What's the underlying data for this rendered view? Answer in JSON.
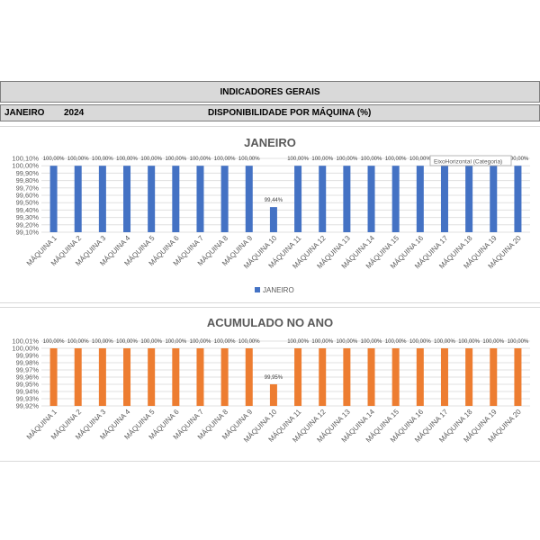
{
  "header": {
    "title": "INDICADORES GERAIS",
    "month": "JANEIRO",
    "year": "2024",
    "subtitle": "DISPONIBILIDADE POR MÁQUINA (%)"
  },
  "tooltip": "EixoHorizontal (Categoria)",
  "chart_data": [
    {
      "type": "bar",
      "title": "JANEIRO",
      "categories": [
        "MÁQUINA 1",
        "MÁQUINA 2",
        "MÁQUINA 3",
        "MÁQUINA 4",
        "MÁQUINA 5",
        "MÁQUINA 6",
        "MÁQUINA 7",
        "MÁQUINA 8",
        "MÁQUINA 9",
        "MÁQUINA 10",
        "MÁQUINA 11",
        "MÁQUINA 12",
        "MÁQUINA 13",
        "MÁQUINA 14",
        "MÁQUINA 15",
        "MÁQUINA 16",
        "MÁQUINA 17",
        "MÁQUINA 18",
        "MÁQUINA 19",
        "MÁQUINA 20"
      ],
      "series": [
        {
          "name": "JANEIRO",
          "values": [
            100,
            100,
            100,
            100,
            100,
            100,
            100,
            100,
            100,
            99.44,
            100,
            100,
            100,
            100,
            100,
            100,
            100,
            100,
            100,
            100
          ]
        }
      ],
      "data_labels": [
        "100,00%",
        "100,00%",
        "100,00%",
        "100,00%",
        "100,00%",
        "100,00%",
        "100,00%",
        "100,00%",
        "100,00%",
        "99,44%",
        "100,00%",
        "100,00%",
        "100,00%",
        "100,00%",
        "100,00%",
        "100,00%",
        "100,00%",
        "100,00%",
        "100,00%",
        "100,00%"
      ],
      "y_ticks": [
        "100,10%",
        "100,00%",
        "99,90%",
        "99,80%",
        "99,70%",
        "99,60%",
        "99,50%",
        "99,40%",
        "99,30%",
        "99,20%",
        "99,10%"
      ],
      "ylim": [
        99.1,
        100.1
      ],
      "grid": true,
      "legend": "bottom",
      "color": "#4472c4"
    },
    {
      "type": "bar",
      "title": "ACUMULADO NO ANO",
      "categories": [
        "MÁQUINA 1",
        "MÁQUINA 2",
        "MÁQUINA 3",
        "MÁQUINA 4",
        "MÁQUINA 5",
        "MÁQUINA 6",
        "MÁQUINA 7",
        "MÁQUINA 8",
        "MÁQUINA 9",
        "MÁQUINA 10",
        "MÁQUINA 11",
        "MÁQUINA 12",
        "MÁQUINA 13",
        "MÁQUINA 14",
        "MÁQUINA 15",
        "MÁQUINA 16",
        "MÁQUINA 17",
        "MÁQUINA 18",
        "MÁQUINA 19",
        "MÁQUINA 20"
      ],
      "series": [
        {
          "values": [
            100,
            100,
            100,
            100,
            100,
            100,
            100,
            100,
            100,
            99.95,
            100,
            100,
            100,
            100,
            100,
            100,
            100,
            100,
            100,
            100
          ]
        }
      ],
      "data_labels": [
        "100,00%",
        "100,00%",
        "100,00%",
        "100,00%",
        "100,00%",
        "100,00%",
        "100,00%",
        "100,00%",
        "100,00%",
        "99,95%",
        "100,00%",
        "100,00%",
        "100,00%",
        "100,00%",
        "100,00%",
        "100,00%",
        "100,00%",
        "100,00%",
        "100,00%",
        "100,00%"
      ],
      "y_ticks": [
        "100,01%",
        "100,00%",
        "99,99%",
        "99,98%",
        "99,97%",
        "99,96%",
        "99,95%",
        "99,94%",
        "99,93%",
        "99,92%"
      ],
      "ylim": [
        99.92,
        100.01
      ],
      "grid": true,
      "color": "#ed7d31"
    }
  ]
}
